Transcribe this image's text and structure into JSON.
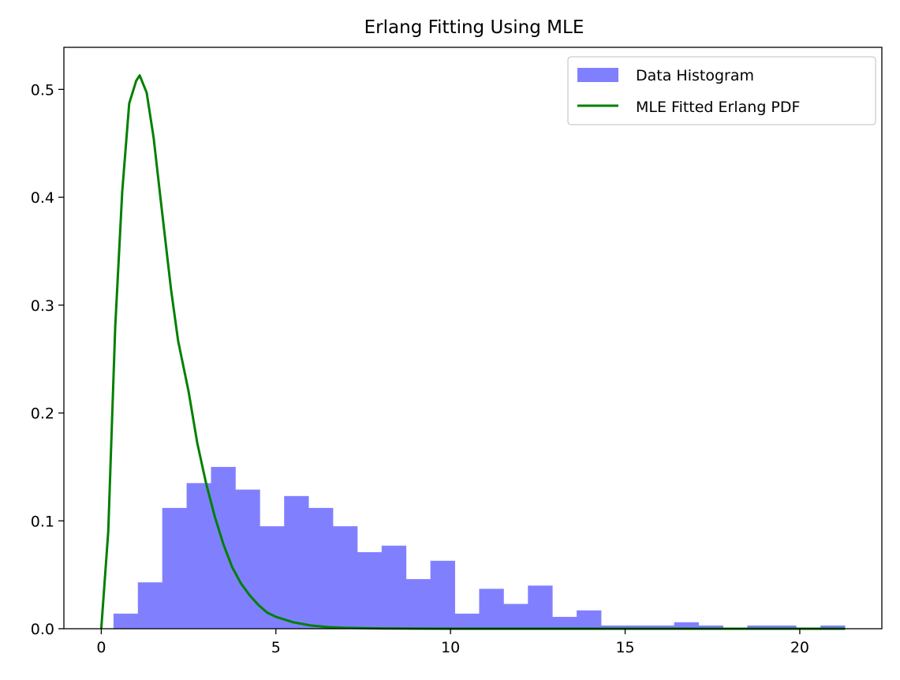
{
  "chart_data": {
    "type": "bar",
    "title": "Erlang Fitting Using MLE",
    "xlabel": "",
    "ylabel": "",
    "xlim": [
      -1.07,
      22.35
    ],
    "ylim": [
      0.0,
      0.539
    ],
    "x_ticks": [
      0,
      5,
      10,
      15,
      20
    ],
    "y_ticks": [
      0.0,
      0.1,
      0.2,
      0.3,
      0.4,
      0.5
    ],
    "y_tick_labels": [
      "0.0",
      "0.1",
      "0.2",
      "0.3",
      "0.4",
      "0.5"
    ],
    "grid": false,
    "legend_position": "top-right",
    "histogram": {
      "name": "Data Histogram",
      "color": "#8080ff",
      "bin_edges": [
        0.35,
        1.048,
        1.746,
        2.444,
        3.142,
        3.84,
        4.538,
        5.236,
        5.934,
        6.632,
        7.33,
        8.028,
        8.726,
        9.424,
        10.122,
        10.82,
        11.518,
        12.216,
        12.914,
        13.612,
        14.31,
        15.008,
        15.706,
        16.404,
        17.102,
        17.8,
        18.498,
        19.196,
        19.894,
        20.592,
        21.29
      ],
      "densities": [
        0.014,
        0.043,
        0.112,
        0.135,
        0.15,
        0.129,
        0.095,
        0.123,
        0.112,
        0.095,
        0.071,
        0.077,
        0.046,
        0.063,
        0.014,
        0.037,
        0.023,
        0.04,
        0.011,
        0.017,
        0.003,
        0.003,
        0.003,
        0.006,
        0.003,
        0.0,
        0.003,
        0.003,
        0.0,
        0.003
      ]
    },
    "series": [
      {
        "name": "MLE Fitted Erlang PDF",
        "color": "#008000",
        "x": [
          0.0,
          0.2,
          0.4,
          0.6,
          0.8,
          1.0,
          1.1,
          1.3,
          1.5,
          1.7,
          2.0,
          2.2,
          2.5,
          2.75,
          3.0,
          3.25,
          3.5,
          3.75,
          4.0,
          4.25,
          4.5,
          4.75,
          5.0,
          5.5,
          6.0,
          6.5,
          7.0,
          8.0,
          9.0,
          10.0,
          12.0,
          15.0,
          18.0,
          21.3
        ],
        "y": [
          0.0,
          0.09,
          0.28,
          0.405,
          0.487,
          0.508,
          0.513,
          0.497,
          0.455,
          0.398,
          0.314,
          0.267,
          0.22,
          0.172,
          0.135,
          0.104,
          0.078,
          0.057,
          0.042,
          0.031,
          0.022,
          0.015,
          0.011,
          0.006,
          0.003,
          0.0015,
          0.0008,
          0.0003,
          0.0001,
          0.0,
          0.0,
          0.0,
          0.0,
          0.0
        ]
      }
    ]
  }
}
